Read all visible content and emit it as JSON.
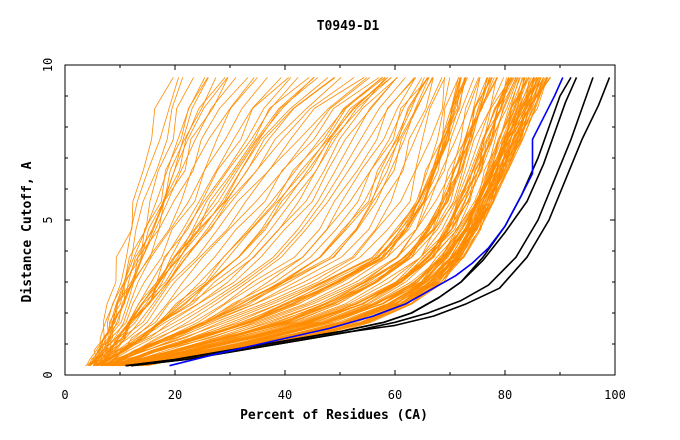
{
  "chart_data": {
    "type": "line",
    "title": "T0949-D1",
    "xlabel": "Percent of Residues (CA)",
    "ylabel": "Distance Cutoff, A",
    "xlim": [
      0,
      100
    ],
    "ylim": [
      0,
      10
    ],
    "x_ticks": [
      "0",
      "20",
      "40",
      "60",
      "80",
      "100"
    ],
    "y_ticks": [
      "0",
      "5",
      "10"
    ],
    "grid": false,
    "colors": {
      "orange": "#ff8c00",
      "black": "#000000",
      "blue": "#0000ff"
    },
    "series_groups": [
      {
        "color": "orange",
        "count": 150,
        "description_note": "",
        "representative_series": [
          {
            "x": [
              4.5,
              6,
              7,
              8,
              10,
              12,
              14,
              16,
              17.5,
              19
            ],
            "y": [
              0.3,
              0.8,
              1.5,
              2.5,
              3.8,
              5,
              6.5,
              8,
              9,
              9.6
            ]
          },
          {
            "x": [
              6,
              9,
              13,
              18,
              24,
              30,
              36,
              42,
              48,
              55
            ],
            "y": [
              0.3,
              0.8,
              1.5,
              2.5,
              3.8,
              5,
              6.3,
              7.6,
              8.8,
              9.6
            ]
          },
          {
            "x": [
              8,
              15,
              25,
              35,
              45,
              55,
              62,
              67,
              70
            ],
            "y": [
              0.3,
              0.8,
              1.4,
              2.1,
              2.9,
              3.8,
              5.2,
              7.5,
              9.6
            ]
          },
          {
            "x": [
              10,
              20,
              32,
              45,
              56,
              64,
              70,
              74,
              77,
              80
            ],
            "y": [
              0.3,
              0.7,
              1.2,
              1.8,
              2.6,
              3.6,
              5,
              6.8,
              8.4,
              9.6
            ]
          },
          {
            "x": [
              12,
              22,
              34,
              46,
              57,
              66,
              73,
              78,
              82,
              85
            ],
            "y": [
              0.3,
              0.6,
              1,
              1.5,
              2.1,
              3,
              4.4,
              6.2,
              8,
              9.6
            ]
          },
          {
            "x": [
              14,
              24,
              36,
              48,
              58,
              66,
              72,
              77,
              82,
              88
            ],
            "y": [
              0.3,
              0.6,
              0.9,
              1.3,
              1.8,
              2.6,
              3.8,
              5.6,
              7.6,
              9.6
            ]
          }
        ]
      }
    ],
    "series": [
      {
        "color": "black",
        "x": [
          11,
          20,
          30,
          40,
          50,
          58,
          63,
          68,
          72,
          76,
          80,
          83,
          86,
          88,
          90,
          92
        ],
        "y": [
          0.3,
          0.5,
          0.8,
          1.1,
          1.4,
          1.7,
          2,
          2.5,
          3,
          3.8,
          4.8,
          5.8,
          7,
          8,
          9,
          9.6
        ]
      },
      {
        "color": "black",
        "x": [
          11,
          20,
          30,
          40,
          50,
          58,
          63,
          68,
          72,
          76,
          80,
          84,
          87,
          89,
          91,
          93
        ],
        "y": [
          0.3,
          0.5,
          0.8,
          1.1,
          1.4,
          1.7,
          2,
          2.5,
          3,
          3.7,
          4.6,
          5.6,
          6.8,
          7.8,
          8.8,
          9.6
        ]
      },
      {
        "color": "black",
        "x": [
          12,
          22,
          32,
          42,
          52,
          60,
          66,
          72,
          77,
          82,
          86,
          89,
          92,
          94,
          96
        ],
        "y": [
          0.3,
          0.5,
          0.8,
          1.1,
          1.4,
          1.7,
          2,
          2.4,
          2.9,
          3.8,
          5,
          6.3,
          7.6,
          8.6,
          9.6
        ]
      },
      {
        "color": "black",
        "x": [
          12,
          22,
          32,
          42,
          52,
          60,
          67,
          73,
          79,
          84,
          88,
          91,
          94,
          97,
          99
        ],
        "y": [
          0.3,
          0.5,
          0.8,
          1.1,
          1.4,
          1.6,
          1.9,
          2.3,
          2.8,
          3.8,
          5,
          6.3,
          7.6,
          8.7,
          9.6
        ]
      },
      {
        "color": "blue",
        "x": [
          19,
          28,
          38,
          48,
          56,
          62,
          67,
          71,
          74,
          77,
          80,
          83,
          85,
          85,
          87,
          89,
          90.5
        ],
        "y": [
          0.3,
          0.7,
          1.1,
          1.5,
          1.9,
          2.3,
          2.8,
          3.2,
          3.6,
          4.1,
          4.8,
          5.8,
          6.5,
          7.6,
          8.3,
          9,
          9.6
        ]
      }
    ]
  }
}
